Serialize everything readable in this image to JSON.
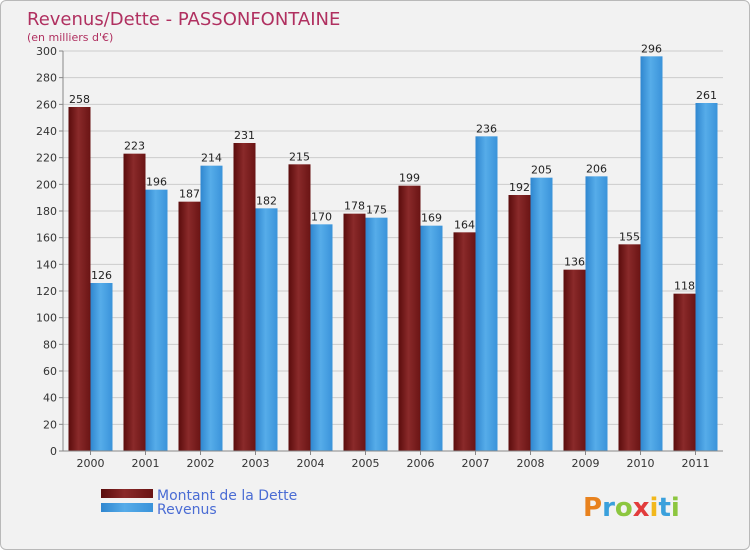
{
  "header": {
    "title": "Revenus/Dette - PASSONFONTAINE",
    "subtitle": "(en milliers d'€)"
  },
  "legend": {
    "debt_label": "Montant de la Dette",
    "revenue_label": "Revenus"
  },
  "logo": {
    "text": "Proxiti",
    "letters": [
      "P",
      "r",
      "o",
      "x",
      "i",
      "t",
      "i"
    ]
  },
  "colors": {
    "debt": "#7a1a1a",
    "revenue": "#3f9be0",
    "title": "#b03060",
    "legend_text": "#4a6cd4",
    "plot_bg": "#f2f2f2",
    "grid": "#cccccc"
  },
  "chart_data": {
    "type": "bar",
    "title": "Revenus/Dette - PASSONFONTAINE",
    "subtitle": "(en milliers d'€)",
    "categories": [
      "2000",
      "2001",
      "2002",
      "2003",
      "2004",
      "2005",
      "2006",
      "2007",
      "2008",
      "2009",
      "2010",
      "2011"
    ],
    "series": [
      {
        "name": "Montant de la Dette",
        "values": [
          258,
          223,
          187,
          231,
          215,
          178,
          199,
          164,
          192,
          136,
          155,
          118
        ]
      },
      {
        "name": "Revenus",
        "values": [
          126,
          196,
          214,
          182,
          170,
          175,
          169,
          236,
          205,
          206,
          296,
          261
        ]
      }
    ],
    "ylim": [
      0,
      300
    ],
    "yticks": [
      0,
      20,
      40,
      60,
      80,
      100,
      120,
      140,
      160,
      180,
      200,
      220,
      240,
      260,
      280,
      300
    ],
    "grid": true,
    "legend_position": "bottom-left"
  }
}
